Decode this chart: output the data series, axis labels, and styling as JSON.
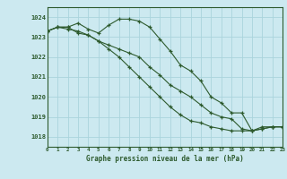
{
  "title": "Graphe pression niveau de la mer (hPa)",
  "background_color": "#cce9f0",
  "grid_color": "#aad4dc",
  "line_color": "#2d5a2d",
  "x_min": 0,
  "x_max": 23,
  "y_min": 1017.5,
  "y_max": 1024.5,
  "yticks": [
    1018,
    1019,
    1020,
    1021,
    1022,
    1023,
    1024
  ],
  "series1": [
    1023.3,
    1023.5,
    1023.5,
    1023.7,
    1023.4,
    1023.2,
    1023.6,
    1023.9,
    1023.9,
    1023.8,
    1023.5,
    1022.9,
    1022.3,
    1021.6,
    1021.3,
    1020.8,
    1020.0,
    1019.7,
    1019.2,
    1019.2,
    1018.3,
    1018.5,
    1018.5,
    1018.5
  ],
  "series2": [
    1023.3,
    1023.5,
    1023.5,
    1023.2,
    1023.1,
    1022.8,
    1022.4,
    1022.0,
    1021.5,
    1021.0,
    1020.5,
    1020.0,
    1019.5,
    1019.1,
    1018.8,
    1018.7,
    1018.5,
    1018.4,
    1018.3,
    1018.3,
    1018.3,
    1018.4,
    1018.5,
    1018.5
  ],
  "series3": [
    1023.3,
    1023.5,
    1023.4,
    1023.3,
    1023.1,
    1022.8,
    1022.6,
    1022.4,
    1022.2,
    1022.0,
    1021.5,
    1021.1,
    1020.6,
    1020.3,
    1020.0,
    1019.6,
    1019.2,
    1019.0,
    1018.9,
    1018.4,
    1018.3,
    1018.4,
    1018.5,
    1018.5
  ]
}
